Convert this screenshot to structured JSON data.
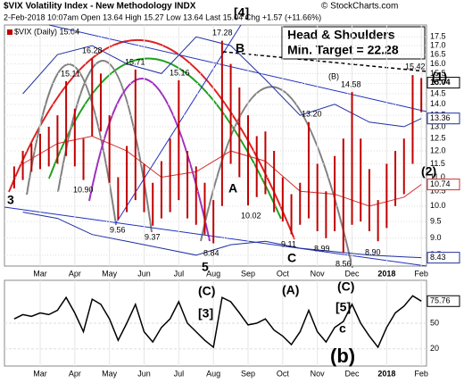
{
  "chart_data": [
    {
      "type": "range-bar",
      "title": "$VIX Volatility Index - New Methodology INDX",
      "subtitle": "2-Feb-2018 10:07am Open 13.64 High 15.27 Low 13.64 Last 15.04 Chg +1.57 (+11.66%)",
      "source": "© StockCharts.com",
      "legend_name": "$VIX (Daily) 15.04",
      "color": "#c00000",
      "note": [
        "Head & Shoulders",
        "Min. Target = 22.28"
      ],
      "x": [
        0.25,
        0.5,
        0.75,
        1.0,
        1.25,
        1.5,
        1.75,
        2.0,
        2.25,
        2.5,
        2.75,
        3.0,
        3.25,
        3.5,
        3.75,
        4.0,
        4.25,
        4.5,
        4.75,
        5.0,
        5.25,
        5.5,
        5.75,
        6.0,
        6.25,
        6.5,
        6.75,
        7.0,
        7.25,
        7.5,
        7.75,
        8.0,
        8.25,
        8.5,
        8.75,
        9.0,
        9.25,
        9.5,
        9.75,
        10.0,
        10.25,
        10.5,
        10.75,
        11.0,
        11.25,
        11.5,
        11.75,
        12.0
      ],
      "highs": [
        11.4,
        12.0,
        12.3,
        12.7,
        13.0,
        13.5,
        15.11,
        13.8,
        12.5,
        16.28,
        15.5,
        13.5,
        11.0,
        12.2,
        15.71,
        11.5,
        10.8,
        11.6,
        12.5,
        15.16,
        12.0,
        11.4,
        10.8,
        10.2,
        17.28,
        16.0,
        14.8,
        13.5,
        12.6,
        12.8,
        12.0,
        11.0,
        10.4,
        10.8,
        13.2,
        11.5,
        10.5,
        11.8,
        12.5,
        14.58,
        12.5,
        11.3,
        10.2,
        11.5,
        12.0,
        12.5,
        15.42,
        15.27
      ],
      "lows": [
        10.6,
        10.9,
        11.2,
        11.3,
        11.4,
        11.5,
        11.8,
        11.4,
        10.9,
        12.6,
        12.8,
        10.8,
        9.56,
        9.8,
        10.2,
        9.8,
        9.37,
        9.6,
        9.8,
        10.2,
        9.6,
        9.4,
        9.1,
        8.84,
        10.0,
        11.5,
        11.0,
        10.02,
        10.3,
        10.4,
        9.8,
        9.5,
        9.11,
        9.4,
        9.6,
        9.2,
        8.99,
        9.2,
        8.56,
        9.4,
        9.5,
        9.2,
        8.9,
        9.3,
        10.0,
        10.4,
        11.5,
        13.64
      ],
      "overlays": [
        {
          "color": "#d03030",
          "x": [
            0.5,
            1.5,
            2.5,
            3.5,
            4.5,
            5.5,
            6.5,
            7.5,
            8.5,
            9.5,
            10.5,
            11.5,
            12.0
          ],
          "values": [
            11.5,
            12.3,
            12.6,
            12.0,
            11.0,
            11.2,
            12.0,
            11.6,
            10.5,
            10.4,
            10.0,
            10.3,
            10.74
          ]
        },
        {
          "color": "#2030a0",
          "x": [
            0.5,
            1.5,
            2.5,
            3.5,
            4.5,
            5.5,
            6.5,
            7.5,
            8.5,
            9.5,
            10.5,
            11.5,
            12.0
          ],
          "values": [
            14.5,
            16.5,
            17.0,
            16.0,
            15.5,
            17.5,
            17.0,
            15.2,
            13.5,
            14.0,
            13.2,
            13.0,
            13.36
          ]
        },
        {
          "color": "#2030a0",
          "x": [
            0.5,
            1.5,
            2.5,
            3.5,
            4.5,
            5.5,
            6.5,
            7.5,
            8.5,
            9.5,
            10.5,
            11.5,
            12.0
          ],
          "values": [
            9.8,
            9.6,
            9.1,
            8.9,
            8.7,
            8.5,
            8.8,
            8.9,
            8.7,
            8.6,
            8.5,
            8.45,
            8.43
          ]
        }
      ],
      "value_boxes": [
        {
          "value": 15.04,
          "color": "#000000"
        },
        {
          "value": 13.36,
          "color": "#2030a0"
        },
        {
          "value": 10.74,
          "color": "#d03030"
        },
        {
          "value": 8.43,
          "color": "#2030a0"
        }
      ],
      "annotations": [
        {
          "text": "[4]",
          "color": "#1030c0"
        },
        {
          "text": "B",
          "color": "#a040a0"
        },
        {
          "text": "(B)",
          "color": "#000000"
        },
        {
          "text": "(1)",
          "color": "#000000"
        },
        {
          "text": "(2)",
          "color": "#000000"
        },
        {
          "text": "A",
          "color": "#d03030"
        },
        {
          "text": "C",
          "color": "#a040a0"
        },
        {
          "text": "3",
          "color": "#a040a0"
        },
        {
          "text": "5",
          "color": "#a040a0"
        },
        {
          "text": "15.11",
          "color": "#000000"
        },
        {
          "text": "16.28",
          "color": "#000000"
        },
        {
          "text": "10.90",
          "color": "#000000"
        },
        {
          "text": "15.71",
          "color": "#000000"
        },
        {
          "text": "9.56",
          "color": "#000000"
        },
        {
          "text": "9.37",
          "color": "#000000"
        },
        {
          "text": "15.16",
          "color": "#000000"
        },
        {
          "text": "8.84",
          "color": "#000000"
        },
        {
          "text": "17.28",
          "color": "#000000"
        },
        {
          "text": "10.02",
          "color": "#000000"
        },
        {
          "text": "9.11",
          "color": "#000000"
        },
        {
          "text": "13.20",
          "color": "#000000"
        },
        {
          "text": "8.99",
          "color": "#000000"
        },
        {
          "text": "14.58",
          "color": "#000000"
        },
        {
          "text": "8.56",
          "color": "#000000"
        },
        {
          "text": "8.90",
          "color": "#000000"
        },
        {
          "text": "15.42",
          "color": "#000000"
        }
      ],
      "xlim": [
        -0.03,
        12.15
      ],
      "xticks": [
        {
          "value": 1,
          "label": "Mar"
        },
        {
          "value": 2,
          "label": "Apr"
        },
        {
          "value": 3,
          "label": "May"
        },
        {
          "value": 4,
          "label": "Jun"
        },
        {
          "value": 5,
          "label": "Jul"
        },
        {
          "value": 6,
          "label": "Aug"
        },
        {
          "value": 7,
          "label": "Sep"
        },
        {
          "value": 8,
          "label": "Oct"
        },
        {
          "value": 9,
          "label": "Nov"
        },
        {
          "value": 10,
          "label": "Dec"
        },
        {
          "value": 11,
          "label": "2018"
        },
        {
          "value": 12,
          "label": "Feb"
        }
      ],
      "ylim": [
        8.2,
        18.2
      ],
      "log_scale": true,
      "grid": true,
      "yticks": [
        8.5,
        {
          "value": 9,
          "label": "9.0"
        },
        9.5,
        {
          "value": 10,
          "label": "10.0"
        },
        10.5,
        {
          "value": 11,
          "label": "11.0"
        },
        11.5,
        {
          "value": 12,
          "label": "12.0"
        },
        12.5,
        {
          "value": 13,
          "label": "13.0"
        },
        13.5,
        {
          "value": 14,
          "label": "14.0"
        },
        14.5,
        {
          "value": 15,
          "label": "15.0"
        },
        15.5,
        {
          "value": 16,
          "label": "16.0"
        },
        16.5,
        {
          "value": 17,
          "label": "17.0"
        },
        17.5
      ]
    },
    {
      "type": "line",
      "color": "#000000",
      "x": [
        0.25,
        0.5,
        0.75,
        1.0,
        1.25,
        1.5,
        1.75,
        2.0,
        2.25,
        2.5,
        2.75,
        3.0,
        3.25,
        3.5,
        3.75,
        4.0,
        4.25,
        4.5,
        4.75,
        5.0,
        5.25,
        5.5,
        5.75,
        6.0,
        6.25,
        6.5,
        6.75,
        7.0,
        7.25,
        7.5,
        7.75,
        8.0,
        8.25,
        8.5,
        8.75,
        9.0,
        9.25,
        9.5,
        9.75,
        10.0,
        10.25,
        10.5,
        10.75,
        11.0,
        11.25,
        11.5,
        11.75,
        12.0
      ],
      "values": [
        55,
        60,
        58,
        62,
        60,
        65,
        80,
        62,
        40,
        78,
        72,
        55,
        30,
        50,
        72,
        40,
        28,
        45,
        55,
        75,
        50,
        40,
        30,
        22,
        80,
        75,
        62,
        48,
        50,
        55,
        42,
        35,
        25,
        40,
        65,
        40,
        28,
        45,
        52,
        72,
        50,
        35,
        22,
        45,
        62,
        70,
        82,
        75.76
      ],
      "value_boxes": [
        {
          "value": 75.76,
          "color": "#000000"
        }
      ],
      "annotations": [
        {
          "text": "(C)",
          "color": "#000000"
        },
        {
          "text": "(A)",
          "color": "#000000"
        },
        {
          "text": "(C)",
          "color": "#000000"
        },
        {
          "text": "[3]",
          "color": "#1030c0"
        },
        {
          "text": "[5]",
          "color": "#1030c0"
        },
        {
          "text": "c",
          "color": "#e02020"
        },
        {
          "text": "(b)",
          "color": "#10a010"
        }
      ],
      "xlim": [
        -0.03,
        12.15
      ],
      "xticks": [
        {
          "value": 1,
          "label": "Mar"
        },
        {
          "value": 2,
          "label": "Apr"
        },
        {
          "value": 3,
          "label": "May"
        },
        {
          "value": 4,
          "label": "Jun"
        },
        {
          "value": 5,
          "label": "Jul"
        },
        {
          "value": 6,
          "label": "Aug"
        },
        {
          "value": 7,
          "label": "Sep"
        },
        {
          "value": 8,
          "label": "Oct"
        },
        {
          "value": 9,
          "label": "Nov"
        },
        {
          "value": 10,
          "label": "Dec"
        },
        {
          "value": 11,
          "label": "2018"
        },
        {
          "value": 12,
          "label": "Feb"
        }
      ],
      "ylim": [
        0,
        100
      ],
      "yticks": [
        20,
        50
      ],
      "grid": true
    }
  ]
}
